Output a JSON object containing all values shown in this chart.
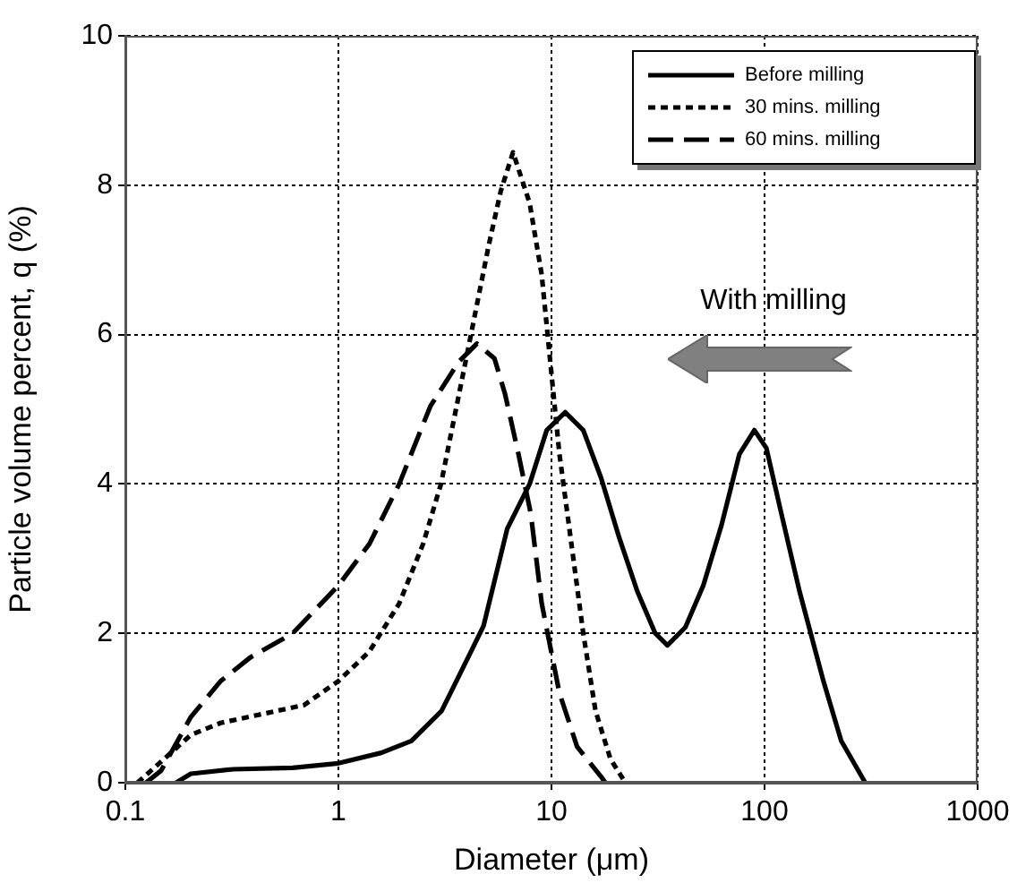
{
  "chart_data": {
    "type": "line",
    "xlabel": "Diameter (μm)",
    "ylabel": "Particle volume percent, q (%)",
    "log": "x",
    "xlim": [
      0.1,
      1000
    ],
    "xticks": [
      0.1,
      1,
      10,
      100,
      1000
    ],
    "ylim": [
      0,
      10
    ],
    "yticks": [
      0,
      2,
      4,
      6,
      8,
      10
    ],
    "grid": true,
    "legend": "top right",
    "marker": "none",
    "annotations": [
      "With milling"
    ],
    "series": [
      {
        "name": "Before milling",
        "color": "#000000",
        "line_style": "solid",
        "x": [
          0.173,
          0.203,
          0.32,
          0.61,
          1,
          1.59,
          2.2,
          3.05,
          4.2,
          4.8,
          6.2,
          7.9,
          9.5,
          11.6,
          14.1,
          17.1,
          20.8,
          25.3,
          30.7,
          35,
          42.5,
          51.6,
          62.7,
          76.2,
          89.6,
          102,
          120,
          146,
          189,
          229,
          297
        ],
        "values": [
          0,
          0.12,
          0.18,
          0.2,
          0.26,
          0.4,
          0.56,
          0.96,
          1.76,
          2.1,
          3.4,
          4.0,
          4.72,
          4.96,
          4.72,
          4.08,
          3.28,
          2.56,
          2.0,
          1.84,
          2.08,
          2.64,
          3.44,
          4.4,
          4.72,
          4.48,
          3.6,
          2.56,
          1.36,
          0.56,
          0
        ]
      },
      {
        "name": "30 mins. milling",
        "color": "#000000",
        "line_style": "dotted",
        "x": [
          0.114,
          0.147,
          0.203,
          0.28,
          0.44,
          0.69,
          1,
          1.4,
          1.93,
          2.5,
          3.03,
          3.68,
          4.19,
          5.08,
          5.78,
          6.6,
          7.9,
          9.0,
          9.9,
          10.9,
          12.4,
          14.1,
          16.1,
          18.9,
          22.2
        ],
        "values": [
          0,
          0.28,
          0.64,
          0.8,
          0.92,
          1.04,
          1.36,
          1.76,
          2.4,
          3.2,
          4.0,
          5.2,
          6.0,
          7.2,
          7.92,
          8.44,
          7.76,
          6.8,
          5.6,
          4.4,
          3.2,
          2.0,
          0.96,
          0.32,
          0
        ]
      },
      {
        "name": "60 mins. milling",
        "color": "#000000",
        "line_style": "dashed",
        "x": [
          0.125,
          0.147,
          0.203,
          0.28,
          0.387,
          0.61,
          1,
          1.4,
          1.93,
          2.7,
          3.68,
          4.47,
          5.4,
          6.06,
          7.0,
          8.0,
          9.0,
          10.9,
          13.2,
          17.1,
          17.9
        ],
        "values": [
          0,
          0.16,
          0.88,
          1.36,
          1.68,
          2.0,
          2.64,
          3.2,
          4.0,
          5.04,
          5.64,
          5.88,
          5.68,
          5.2,
          4.4,
          3.6,
          2.4,
          1.2,
          0.48,
          0.08,
          0
        ]
      }
    ]
  }
}
